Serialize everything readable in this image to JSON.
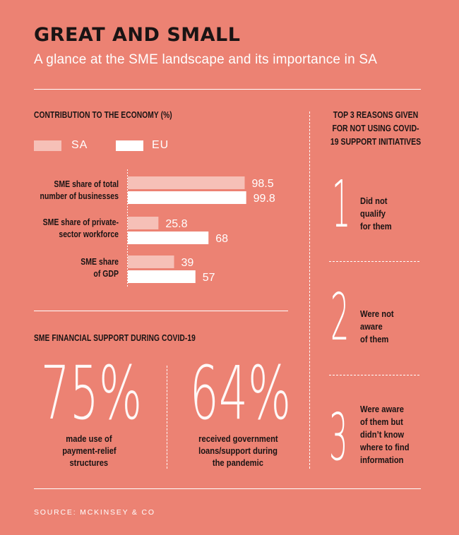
{
  "header": {
    "title": "GREAT AND SMALL",
    "subtitle": "A glance at the SME landscape and its importance in SA"
  },
  "contribution": {
    "heading": "CONTRIBUTION TO THE ECONOMY (%)",
    "legend": [
      {
        "label": "SA",
        "color": "#f6c0b7"
      },
      {
        "label": "EU",
        "color": "#ffffff"
      }
    ],
    "categories": [
      {
        "label_lines": [
          "SME share of total",
          "number of businesses"
        ]
      },
      {
        "label_lines": [
          "SME share of private-",
          "sector workforce"
        ]
      },
      {
        "label_lines": [
          "SME share",
          "of GDP"
        ]
      }
    ]
  },
  "chart_data": {
    "type": "bar",
    "orientation": "horizontal",
    "title": "CONTRIBUTION TO THE ECONOMY (%)",
    "categories": [
      "SME share of total number of businesses",
      "SME share of private-sector workforce",
      "SME share of GDP"
    ],
    "series": [
      {
        "name": "SA",
        "values": [
          98.5,
          25.8,
          39
        ],
        "color": "#f6c0b7"
      },
      {
        "name": "EU",
        "values": [
          99.8,
          68,
          57
        ],
        "color": "#ffffff"
      }
    ],
    "value_labels": [
      [
        "98.5",
        "25.8",
        "39"
      ],
      [
        "99.8",
        "68",
        "57"
      ]
    ],
    "xlim": [
      0,
      100
    ],
    "grid": false,
    "legend_position": "top-left"
  },
  "covid_support": {
    "heading": "SME FINANCIAL SUPPORT DURING COVID-19",
    "stats": [
      {
        "value": "75%",
        "caption_lines": [
          "made use of",
          "payment-relief",
          "structures"
        ]
      },
      {
        "value": "64%",
        "caption_lines": [
          "received government",
          "loans/support during",
          "the pandemic"
        ]
      }
    ]
  },
  "reasons": {
    "heading_lines": [
      "TOP 3 REASONS GIVEN",
      "FOR NOT USING COVID-",
      "19 SUPPORT INITIATIVES"
    ],
    "items": [
      {
        "rank": "1",
        "text_lines": [
          "Did not",
          "qualify",
          "for them"
        ]
      },
      {
        "rank": "2",
        "text_lines": [
          "Were not",
          "aware",
          "of them"
        ]
      },
      {
        "rank": "3",
        "text_lines": [
          "Were aware",
          "of them but",
          "didn’t know",
          "where to find",
          "information"
        ]
      }
    ]
  },
  "source": "SOURCE: MCKINSEY & CO",
  "colors": {
    "background": "#ec8273",
    "title": "#1a1414",
    "sa_bar": "#f6c0b7",
    "eu_bar": "#ffffff"
  }
}
